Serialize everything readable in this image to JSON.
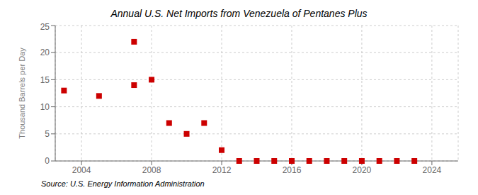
{
  "chart_data": {
    "type": "scatter",
    "title": "Annual U.S. Net Imports from Venezuela of Pentanes Plus",
    "ylabel": "Thousand Barrels per Day",
    "annotation": "Source: U.S. Energy Information Administration",
    "x": [
      2003,
      2005,
      2007,
      2007,
      2008,
      2009,
      2010,
      2011,
      2012,
      2013,
      2014,
      2015,
      2016,
      2017,
      2018,
      2019,
      2020,
      2021,
      2022,
      2023
    ],
    "values": [
      13.0,
      12.0,
      14.0,
      22.0,
      15.0,
      7.0,
      5.0,
      7.0,
      2.0,
      0.0,
      0.0,
      0.0,
      0.0,
      0.0,
      0.0,
      0.0,
      0.0,
      0.0,
      0.0,
      0.0
    ],
    "color": "#cc0000",
    "marker": "square",
    "xlim": [
      2002.5,
      2025.5
    ],
    "ylim": [
      0,
      25
    ],
    "xticks": [
      2004,
      2008,
      2012,
      2016,
      2020,
      2024
    ],
    "yticks": [
      0,
      5,
      10,
      15,
      20,
      25
    ],
    "grid": true
  }
}
